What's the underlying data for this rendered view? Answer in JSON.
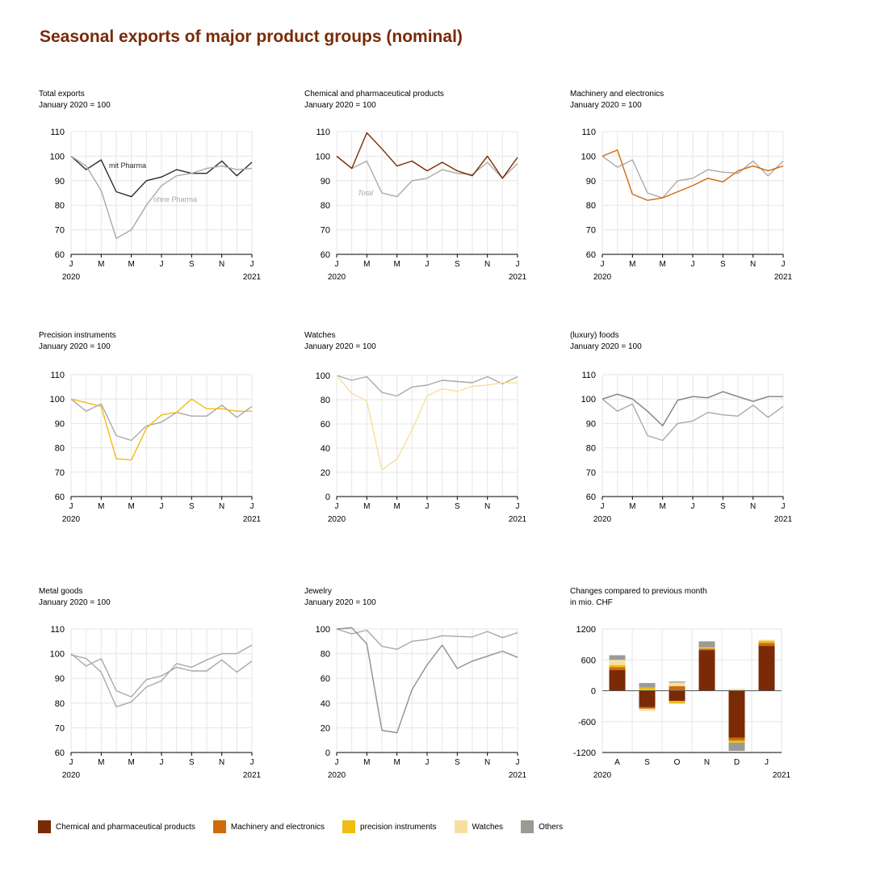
{
  "title": "Seasonal exports of major product groups (nominal)",
  "colors": {
    "chem": "#7a2a05",
    "machinery": "#d06a0a",
    "precision": "#f0bd14",
    "watches": "#f7dfa0",
    "others": "#9b9b96",
    "dark": "#2b2b2b",
    "grey": "#a9a9a9"
  },
  "legend": [
    {
      "label": "Chemical and pharmaceutical products",
      "color": "#7a2a05"
    },
    {
      "label": "Machinery and electronics",
      "color": "#d06a0a"
    },
    {
      "label": "precision instruments",
      "color": "#f0bd14"
    },
    {
      "label": "Watches",
      "color": "#f7dfa0"
    },
    {
      "label": "Others",
      "color": "#9b9b96"
    }
  ],
  "chart_data": [
    {
      "type": "line",
      "title": "Total exports",
      "subtitle": "January 2020 = 100",
      "ylim": [
        60,
        110
      ],
      "yticks": [
        "110",
        "100",
        "90",
        "80",
        "70",
        "60"
      ],
      "xticks": [
        "J",
        "M",
        "M",
        "J",
        "S",
        "N",
        "J"
      ],
      "xyears": [
        "2020",
        "2021"
      ],
      "annotations": [
        {
          "text": "mit Pharma",
          "color": "#2b2b2b"
        },
        {
          "text": "ohne Pharma",
          "color": "#a9a9a9"
        }
      ],
      "series": [
        {
          "name": "mit Pharma",
          "color": "#2b2b2b",
          "values": [
            100,
            94.5,
            98.5,
            85.5,
            83.5,
            90,
            91.5,
            94.5,
            93,
            93,
            98,
            92,
            97.5
          ]
        },
        {
          "name": "ohne Pharma",
          "color": "#a9a9a9",
          "values": [
            100,
            96,
            86,
            66.5,
            70,
            80,
            88,
            92,
            93,
            95,
            96,
            94.5,
            95
          ]
        }
      ]
    },
    {
      "type": "line",
      "title": "Chemical and pharmaceutical products",
      "subtitle": "January 2020 = 100",
      "ylim": [
        60,
        110
      ],
      "yticks": [
        "110",
        "100",
        "90",
        "80",
        "70",
        "60"
      ],
      "xticks": [
        "J",
        "M",
        "M",
        "J",
        "S",
        "N",
        "J"
      ],
      "xyears": [
        "2020",
        "2021"
      ],
      "annotations": [
        {
          "text": "Total",
          "color": "#a9a9a9"
        }
      ],
      "series": [
        {
          "name": "Total",
          "color": "#a9a9a9",
          "values": [
            100,
            95,
            98,
            85,
            83.5,
            90,
            91,
            94.5,
            93,
            92.5,
            97.5,
            91,
            97
          ]
        },
        {
          "name": "Chemical and pharmaceutical products",
          "color": "#7a2a05",
          "values": [
            100,
            95,
            109.5,
            103,
            96,
            98,
            94,
            97.5,
            94,
            92,
            100,
            91,
            99.5
          ]
        }
      ]
    },
    {
      "type": "line",
      "title": "Machinery and electronics",
      "subtitle": "January 2020 = 100",
      "ylim": [
        60,
        110
      ],
      "yticks": [
        "110",
        "100",
        "90",
        "80",
        "70",
        "60"
      ],
      "xticks": [
        "J",
        "M",
        "M",
        "J",
        "S",
        "N",
        "J"
      ],
      "xyears": [
        "2020",
        "2021"
      ],
      "annotations": [],
      "series": [
        {
          "name": "Total",
          "color": "#a9a9a9",
          "values": [
            100,
            95.5,
            98.5,
            85,
            83,
            90,
            91,
            94.5,
            93.5,
            93,
            98,
            92,
            98
          ]
        },
        {
          "name": "Machinery and electronics",
          "color": "#d06a0a",
          "values": [
            100,
            102.5,
            84.5,
            82,
            83,
            85.5,
            88,
            91,
            89.5,
            94,
            96,
            94,
            96
          ]
        }
      ]
    },
    {
      "type": "line",
      "title": "Precision instruments",
      "subtitle": "January 2020 = 100",
      "ylim": [
        60,
        110
      ],
      "yticks": [
        "110",
        "100",
        "90",
        "80",
        "70",
        "60"
      ],
      "xticks": [
        "J",
        "M",
        "M",
        "J",
        "S",
        "N",
        "J"
      ],
      "xyears": [
        "2020",
        "2021"
      ],
      "annotations": [],
      "series": [
        {
          "name": "Total",
          "color": "#a9a9a9",
          "values": [
            100,
            95,
            98,
            85,
            83,
            89,
            90.5,
            94.5,
            93,
            93,
            97.5,
            92.5,
            97
          ]
        },
        {
          "name": "precision instruments",
          "color": "#f0bd14",
          "values": [
            100,
            98.5,
            97,
            75.5,
            75,
            88,
            93.5,
            94.5,
            100,
            96,
            96,
            95,
            95
          ]
        }
      ]
    },
    {
      "type": "line",
      "title": "Watches",
      "subtitle": "January 2020 = 100",
      "ylim": [
        0,
        100
      ],
      "yticks": [
        "100",
        "80",
        "60",
        "40",
        "20",
        "0"
      ],
      "xticks": [
        "J",
        "M",
        "M",
        "J",
        "S",
        "N",
        "J"
      ],
      "xyears": [
        "2020",
        "2021"
      ],
      "annotations": [],
      "series": [
        {
          "name": "Total",
          "color": "#a9a9a9",
          "values": [
            100,
            96,
            99,
            86,
            83,
            90.5,
            92,
            96,
            95,
            94,
            99,
            93,
            99
          ]
        },
        {
          "name": "Watches",
          "color": "#f7dfa0",
          "values": [
            100,
            85,
            79,
            22,
            31,
            55,
            83,
            89,
            87,
            91,
            92,
            94,
            94
          ]
        }
      ]
    },
    {
      "type": "line",
      "title": "(luxury) foods",
      "subtitle": "January 2020 = 100",
      "ylim": [
        60,
        110
      ],
      "yticks": [
        "110",
        "100",
        "90",
        "80",
        "70",
        "60"
      ],
      "xticks": [
        "J",
        "M",
        "M",
        "J",
        "S",
        "N",
        "J"
      ],
      "xyears": [
        "2020",
        "2021"
      ],
      "annotations": [],
      "series": [
        {
          "name": "Total",
          "color": "#a9a9a9",
          "values": [
            100,
            95,
            98,
            85,
            83,
            90,
            91,
            94.5,
            93.5,
            93,
            97.5,
            92.5,
            97
          ]
        },
        {
          "name": "(luxury) foods",
          "color": "#808080",
          "values": [
            100,
            102,
            100,
            95,
            89,
            99.5,
            101,
            100.5,
            103,
            101,
            99,
            101,
            101
          ]
        }
      ]
    },
    {
      "type": "line",
      "title": "Metal goods",
      "subtitle": "January 2020 = 100",
      "ylim": [
        60,
        110
      ],
      "yticks": [
        "110",
        "100",
        "90",
        "80",
        "70",
        "60"
      ],
      "xticks": [
        "J",
        "M",
        "M",
        "J",
        "S",
        "N",
        "J"
      ],
      "xyears": [
        "2020",
        "2021"
      ],
      "annotations": [],
      "series": [
        {
          "name": "Total",
          "color": "#a9a9a9",
          "values": [
            100,
            95,
            98,
            85,
            82.5,
            89.5,
            91,
            94.5,
            93,
            93,
            97.5,
            92.5,
            97
          ]
        },
        {
          "name": "Metal goods",
          "color": "#a9a9a9",
          "values": [
            99.5,
            98,
            92.5,
            78.5,
            80.5,
            86.5,
            89,
            96,
            94.5,
            97.5,
            100,
            100,
            103.5
          ]
        }
      ]
    },
    {
      "type": "line",
      "title": "Jewelry",
      "subtitle": "January 2020 = 100",
      "ylim": [
        0,
        100
      ],
      "yticks": [
        "100",
        "80",
        "60",
        "40",
        "20",
        "0"
      ],
      "xticks": [
        "J",
        "M",
        "M",
        "J",
        "S",
        "N",
        "J"
      ],
      "xyears": [
        "2020",
        "2021"
      ],
      "annotations": [],
      "series": [
        {
          "name": "Total",
          "color": "#a9a9a9",
          "values": [
            100,
            96,
            99,
            86,
            83.5,
            90,
            91.5,
            94.5,
            94,
            93.5,
            98,
            93,
            97
          ]
        },
        {
          "name": "Jewelry",
          "color": "#909090",
          "values": [
            100,
            101,
            88,
            18,
            16,
            51,
            71,
            87,
            68,
            74,
            78,
            82,
            77
          ]
        }
      ]
    },
    {
      "type": "bar",
      "title": "Changes compared to previous month",
      "subtitle": "in mio. CHF",
      "stacked": true,
      "ylim": [
        -1200,
        1200
      ],
      "yticks": [
        "1200",
        "600",
        "0",
        "-600",
        "-1200"
      ],
      "categories": [
        "A",
        "S",
        "O",
        "N",
        "D",
        "J"
      ],
      "xyears": [
        "2020",
        "2021"
      ],
      "series": [
        {
          "name": "Chemical and pharmaceutical products",
          "color": "#7a2a05",
          "values": [
            400,
            -320,
            -200,
            790,
            -910,
            870
          ]
        },
        {
          "name": "Machinery and electronics",
          "color": "#d06a0a",
          "values": [
            60,
            -30,
            90,
            30,
            -60,
            60
          ]
        },
        {
          "name": "precision instruments",
          "color": "#f0bd14",
          "values": [
            40,
            60,
            -50,
            10,
            -40,
            40
          ]
        },
        {
          "name": "Watches",
          "color": "#f7dfa0",
          "values": [
            100,
            -40,
            70,
            10,
            40,
            20
          ]
        },
        {
          "name": "Others",
          "color": "#9b9b96",
          "values": [
            90,
            90,
            20,
            120,
            -160,
            0
          ]
        }
      ]
    }
  ]
}
